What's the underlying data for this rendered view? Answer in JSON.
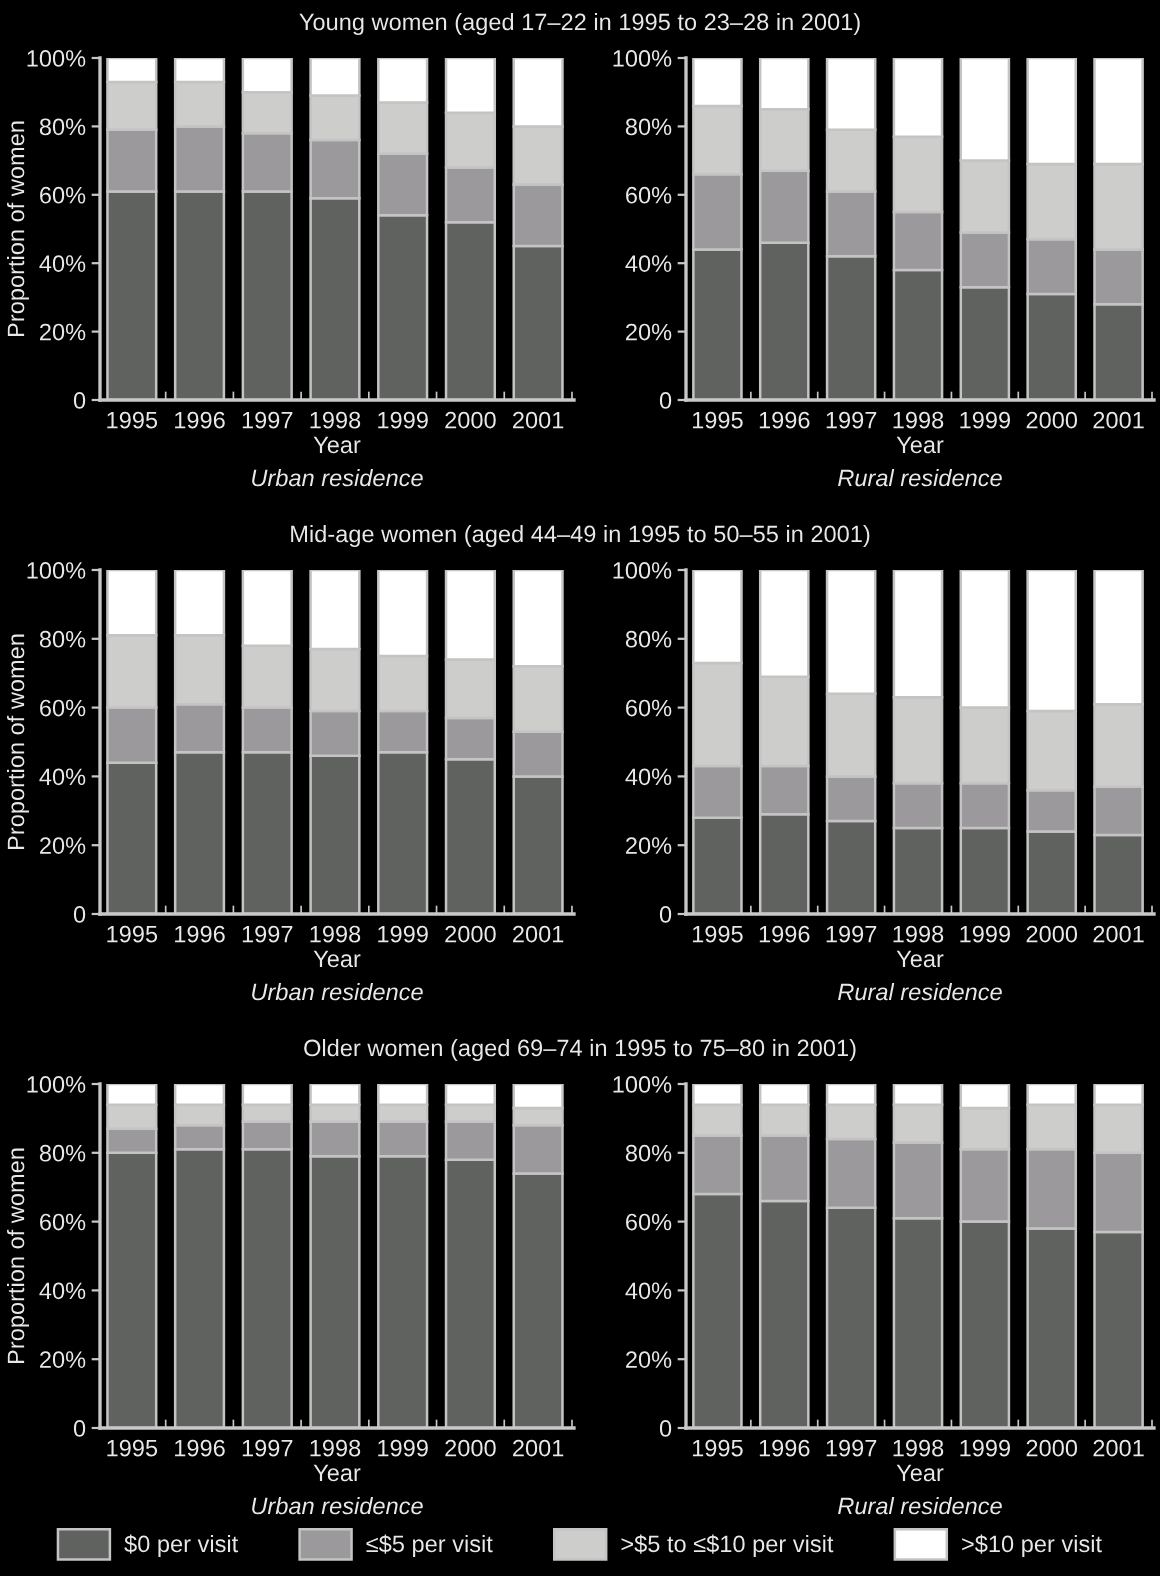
{
  "chart_data": [
    {
      "type": "bar",
      "stacked": true,
      "title": "Young women (aged 17–22 in 1995 to 23–28 in 2001)",
      "xlabel": "Year",
      "ylabel": "Proportion of women",
      "annotations": [
        "Urban residence"
      ],
      "legend": "bottom",
      "categories": [
        "1995",
        "1996",
        "1997",
        "1998",
        "1999",
        "2000",
        "2001"
      ],
      "ylim": [
        0,
        100
      ],
      "yticks": [
        0,
        {
          "value": 20,
          "label": "20%"
        },
        {
          "value": 40,
          "label": "40%"
        },
        {
          "value": 60,
          "label": "60%"
        },
        {
          "value": 80,
          "label": "80%"
        },
        {
          "value": 100,
          "label": "100%"
        }
      ],
      "series": [
        {
          "name": "$0 per visit",
          "color": "#5f625e",
          "values": [
            61,
            61,
            61,
            59,
            54,
            52,
            45
          ]
        },
        {
          "name": "≤$5 per visit",
          "color": "#9b999b",
          "values": [
            18,
            19,
            17,
            17,
            18,
            16,
            18
          ]
        },
        {
          "name": ">$5 to ≤$10 per visit",
          "color": "#cdcecb",
          "values": [
            14,
            13,
            12,
            13,
            15,
            16,
            17
          ]
        },
        {
          "name": ">$10 per visit",
          "color": "#ffffff",
          "values": [
            7,
            7,
            10,
            11,
            13,
            16,
            20
          ]
        }
      ]
    },
    {
      "type": "bar",
      "stacked": true,
      "xlabel": "Year",
      "annotations": [
        "Rural residence"
      ],
      "categories": [
        "1995",
        "1996",
        "1997",
        "1998",
        "1999",
        "2000",
        "2001"
      ],
      "ylim": [
        0,
        100
      ],
      "yticks": [
        0,
        {
          "value": 20,
          "label": "20%"
        },
        {
          "value": 40,
          "label": "40%"
        },
        {
          "value": 60,
          "label": "60%"
        },
        {
          "value": 80,
          "label": "80%"
        },
        {
          "value": 100,
          "label": "100%"
        }
      ],
      "series": [
        {
          "color": "#5f625e",
          "values": [
            44,
            46,
            42,
            38,
            33,
            31,
            28
          ]
        },
        {
          "color": "#9b999b",
          "values": [
            22,
            21,
            19,
            17,
            16,
            16,
            16
          ]
        },
        {
          "color": "#cdcecb",
          "values": [
            20,
            18,
            18,
            22,
            21,
            22,
            25
          ]
        },
        {
          "color": "#ffffff",
          "values": [
            14,
            15,
            21,
            23,
            30,
            31,
            31
          ]
        }
      ]
    },
    {
      "type": "bar",
      "stacked": true,
      "title": "Mid-age women (aged 44–49 in 1995 to 50–55 in 2001)",
      "xlabel": "Year",
      "ylabel": "Proportion of women",
      "annotations": [
        "Urban residence"
      ],
      "categories": [
        "1995",
        "1996",
        "1997",
        "1998",
        "1999",
        "2000",
        "2001"
      ],
      "ylim": [
        0,
        100
      ],
      "yticks": [
        0,
        {
          "value": 20,
          "label": "20%"
        },
        {
          "value": 40,
          "label": "40%"
        },
        {
          "value": 60,
          "label": "60%"
        },
        {
          "value": 80,
          "label": "80%"
        },
        {
          "value": 100,
          "label": "100%"
        }
      ],
      "series": [
        {
          "color": "#5f625e",
          "values": [
            44,
            47,
            47,
            46,
            47,
            45,
            40
          ]
        },
        {
          "color": "#9b999b",
          "values": [
            16,
            14,
            13,
            13,
            12,
            12,
            13
          ]
        },
        {
          "color": "#cdcecb",
          "values": [
            21,
            20,
            18,
            18,
            16,
            17,
            19
          ]
        },
        {
          "color": "#ffffff",
          "values": [
            19,
            19,
            22,
            23,
            25,
            26,
            28
          ]
        }
      ]
    },
    {
      "type": "bar",
      "stacked": true,
      "xlabel": "Year",
      "annotations": [
        "Rural residence"
      ],
      "categories": [
        "1995",
        "1996",
        "1997",
        "1998",
        "1999",
        "2000",
        "2001"
      ],
      "ylim": [
        0,
        100
      ],
      "yticks": [
        0,
        {
          "value": 20,
          "label": "20%"
        },
        {
          "value": 40,
          "label": "40%"
        },
        {
          "value": 60,
          "label": "60%"
        },
        {
          "value": 80,
          "label": "80%"
        },
        {
          "value": 100,
          "label": "100%"
        }
      ],
      "series": [
        {
          "color": "#5f625e",
          "values": [
            28,
            29,
            27,
            25,
            25,
            24,
            23
          ]
        },
        {
          "color": "#9b999b",
          "values": [
            15,
            14,
            13,
            13,
            13,
            12,
            14
          ]
        },
        {
          "color": "#cdcecb",
          "values": [
            30,
            26,
            24,
            25,
            22,
            23,
            24
          ]
        },
        {
          "color": "#ffffff",
          "values": [
            27,
            31,
            36,
            37,
            40,
            41,
            39
          ]
        }
      ]
    },
    {
      "type": "bar",
      "stacked": true,
      "title": "Older women (aged 69–74 in 1995 to 75–80 in 2001)",
      "xlabel": "Year",
      "ylabel": "Proportion of women",
      "annotations": [
        "Urban residence"
      ],
      "categories": [
        "1995",
        "1996",
        "1997",
        "1998",
        "1999",
        "2000",
        "2001"
      ],
      "ylim": [
        0,
        100
      ],
      "yticks": [
        0,
        {
          "value": 20,
          "label": "20%"
        },
        {
          "value": 40,
          "label": "40%"
        },
        {
          "value": 60,
          "label": "60%"
        },
        {
          "value": 80,
          "label": "80%"
        },
        {
          "value": 100,
          "label": "100%"
        }
      ],
      "series": [
        {
          "color": "#5f625e",
          "values": [
            80,
            81,
            81,
            79,
            79,
            78,
            74
          ]
        },
        {
          "color": "#9b999b",
          "values": [
            7,
            7,
            8,
            10,
            10,
            11,
            14
          ]
        },
        {
          "color": "#cdcecb",
          "values": [
            7,
            6,
            5,
            5,
            5,
            5,
            5
          ]
        },
        {
          "color": "#ffffff",
          "values": [
            6,
            6,
            6,
            6,
            6,
            6,
            7
          ]
        }
      ]
    },
    {
      "type": "bar",
      "stacked": true,
      "xlabel": "Year",
      "annotations": [
        "Rural residence"
      ],
      "categories": [
        "1995",
        "1996",
        "1997",
        "1998",
        "1999",
        "2000",
        "2001"
      ],
      "ylim": [
        0,
        100
      ],
      "yticks": [
        0,
        {
          "value": 20,
          "label": "20%"
        },
        {
          "value": 40,
          "label": "40%"
        },
        {
          "value": 60,
          "label": "60%"
        },
        {
          "value": 80,
          "label": "80%"
        },
        {
          "value": 100,
          "label": "100%"
        }
      ],
      "series": [
        {
          "color": "#5f625e",
          "values": [
            68,
            66,
            64,
            61,
            60,
            58,
            57
          ]
        },
        {
          "color": "#9b999b",
          "values": [
            17,
            19,
            20,
            22,
            21,
            23,
            23
          ]
        },
        {
          "color": "#cdcecb",
          "values": [
            9,
            9,
            10,
            11,
            12,
            13,
            14
          ]
        },
        {
          "color": "#ffffff",
          "values": [
            6,
            6,
            6,
            6,
            7,
            6,
            6
          ]
        }
      ]
    }
  ]
}
